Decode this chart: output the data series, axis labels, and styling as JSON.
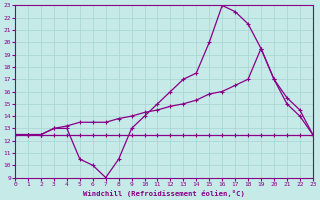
{
  "xlabel": "Windchill (Refroidissement éolien,°C)",
  "bg_color": "#c5eae8",
  "line_color": "#880088",
  "grid_color": "#a8d4d0",
  "xmin": 0,
  "xmax": 23,
  "ymin": 9,
  "ymax": 23,
  "line1_x": [
    0,
    1,
    2,
    3,
    4,
    5,
    6,
    7,
    8,
    9,
    10,
    11,
    12,
    13,
    14,
    15,
    16,
    17,
    18,
    19,
    20,
    21,
    22,
    23
  ],
  "line1_y": [
    12.5,
    12.5,
    12.5,
    12.5,
    12.5,
    12.5,
    12.5,
    12.5,
    12.5,
    12.5,
    12.5,
    12.5,
    12.5,
    12.5,
    12.5,
    12.5,
    12.5,
    12.5,
    12.5,
    12.5,
    12.5,
    12.5,
    12.5,
    12.5
  ],
  "line2_x": [
    0,
    1,
    2,
    3,
    4,
    5,
    6,
    7,
    8,
    9,
    10,
    11,
    12,
    13,
    14,
    15,
    16,
    17,
    18,
    19,
    20,
    21,
    22,
    23
  ],
  "line2_y": [
    12.5,
    12.5,
    12.5,
    13.0,
    13.2,
    13.5,
    13.5,
    13.5,
    13.8,
    14.0,
    14.3,
    14.5,
    14.8,
    15.0,
    15.3,
    15.8,
    16.0,
    16.5,
    17.0,
    19.5,
    17.0,
    15.5,
    14.5,
    12.5
  ],
  "line3_x": [
    0,
    1,
    2,
    3,
    4,
    5,
    6,
    7,
    8,
    9,
    10,
    11,
    12,
    13,
    14,
    15,
    16,
    17,
    18,
    19,
    20,
    21,
    22,
    23
  ],
  "line3_y": [
    12.5,
    12.5,
    12.5,
    13.0,
    13.0,
    10.5,
    10.0,
    9.0,
    10.5,
    13.0,
    14.0,
    15.0,
    16.0,
    17.0,
    17.5,
    20.0,
    23.0,
    22.5,
    21.5,
    19.5,
    17.0,
    15.0,
    14.0,
    12.5
  ],
  "xticks": [
    0,
    1,
    2,
    3,
    4,
    5,
    6,
    7,
    8,
    9,
    10,
    11,
    12,
    13,
    14,
    15,
    16,
    17,
    18,
    19,
    20,
    21,
    22,
    23
  ],
  "yticks": [
    9,
    10,
    11,
    12,
    13,
    14,
    15,
    16,
    17,
    18,
    19,
    20,
    21,
    22,
    23
  ]
}
